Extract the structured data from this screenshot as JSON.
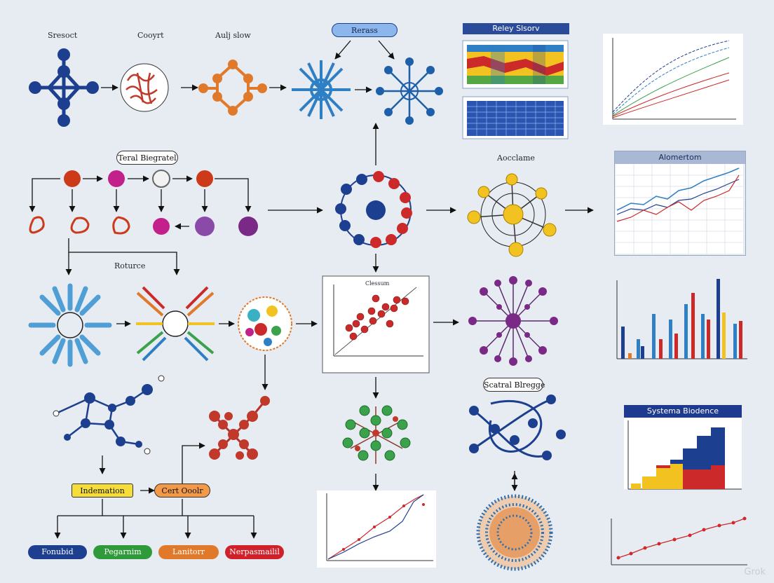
{
  "labels": {
    "top_left_1": "Sresoct",
    "top_left_2": "Cooyrt",
    "top_left_3": "Aulj slow",
    "top_pill": "Rerass",
    "heatmap_title": "Reley Slsorv",
    "boxed_label": "Teral Biegratel",
    "middle_label": "Aocclame",
    "roture_label": "Roturce",
    "scatter_title": "Clessum",
    "graph_box_label": "Scatral Blregge",
    "line_panel_title": "Alomertom",
    "system_title": "Systema Biodence"
  },
  "bottom_boxes": {
    "indemation": "Indemation",
    "cert_ooolr": "Cert Ooolr",
    "fonubid": "Fonubid",
    "pegarnim": "Pegarnim",
    "lanitorr": "Lanitorr",
    "nerposmall": "Nerpasmailil"
  },
  "colors": {
    "navy": "#1d3f8f",
    "blue": "#2e7fc4",
    "red": "#cc2a2a",
    "orange": "#e07a2a",
    "green": "#3aa24a",
    "purple": "#7a2a86",
    "yellow": "#f2c320",
    "magenta": "#c2208a"
  },
  "watermark": "Grok"
}
